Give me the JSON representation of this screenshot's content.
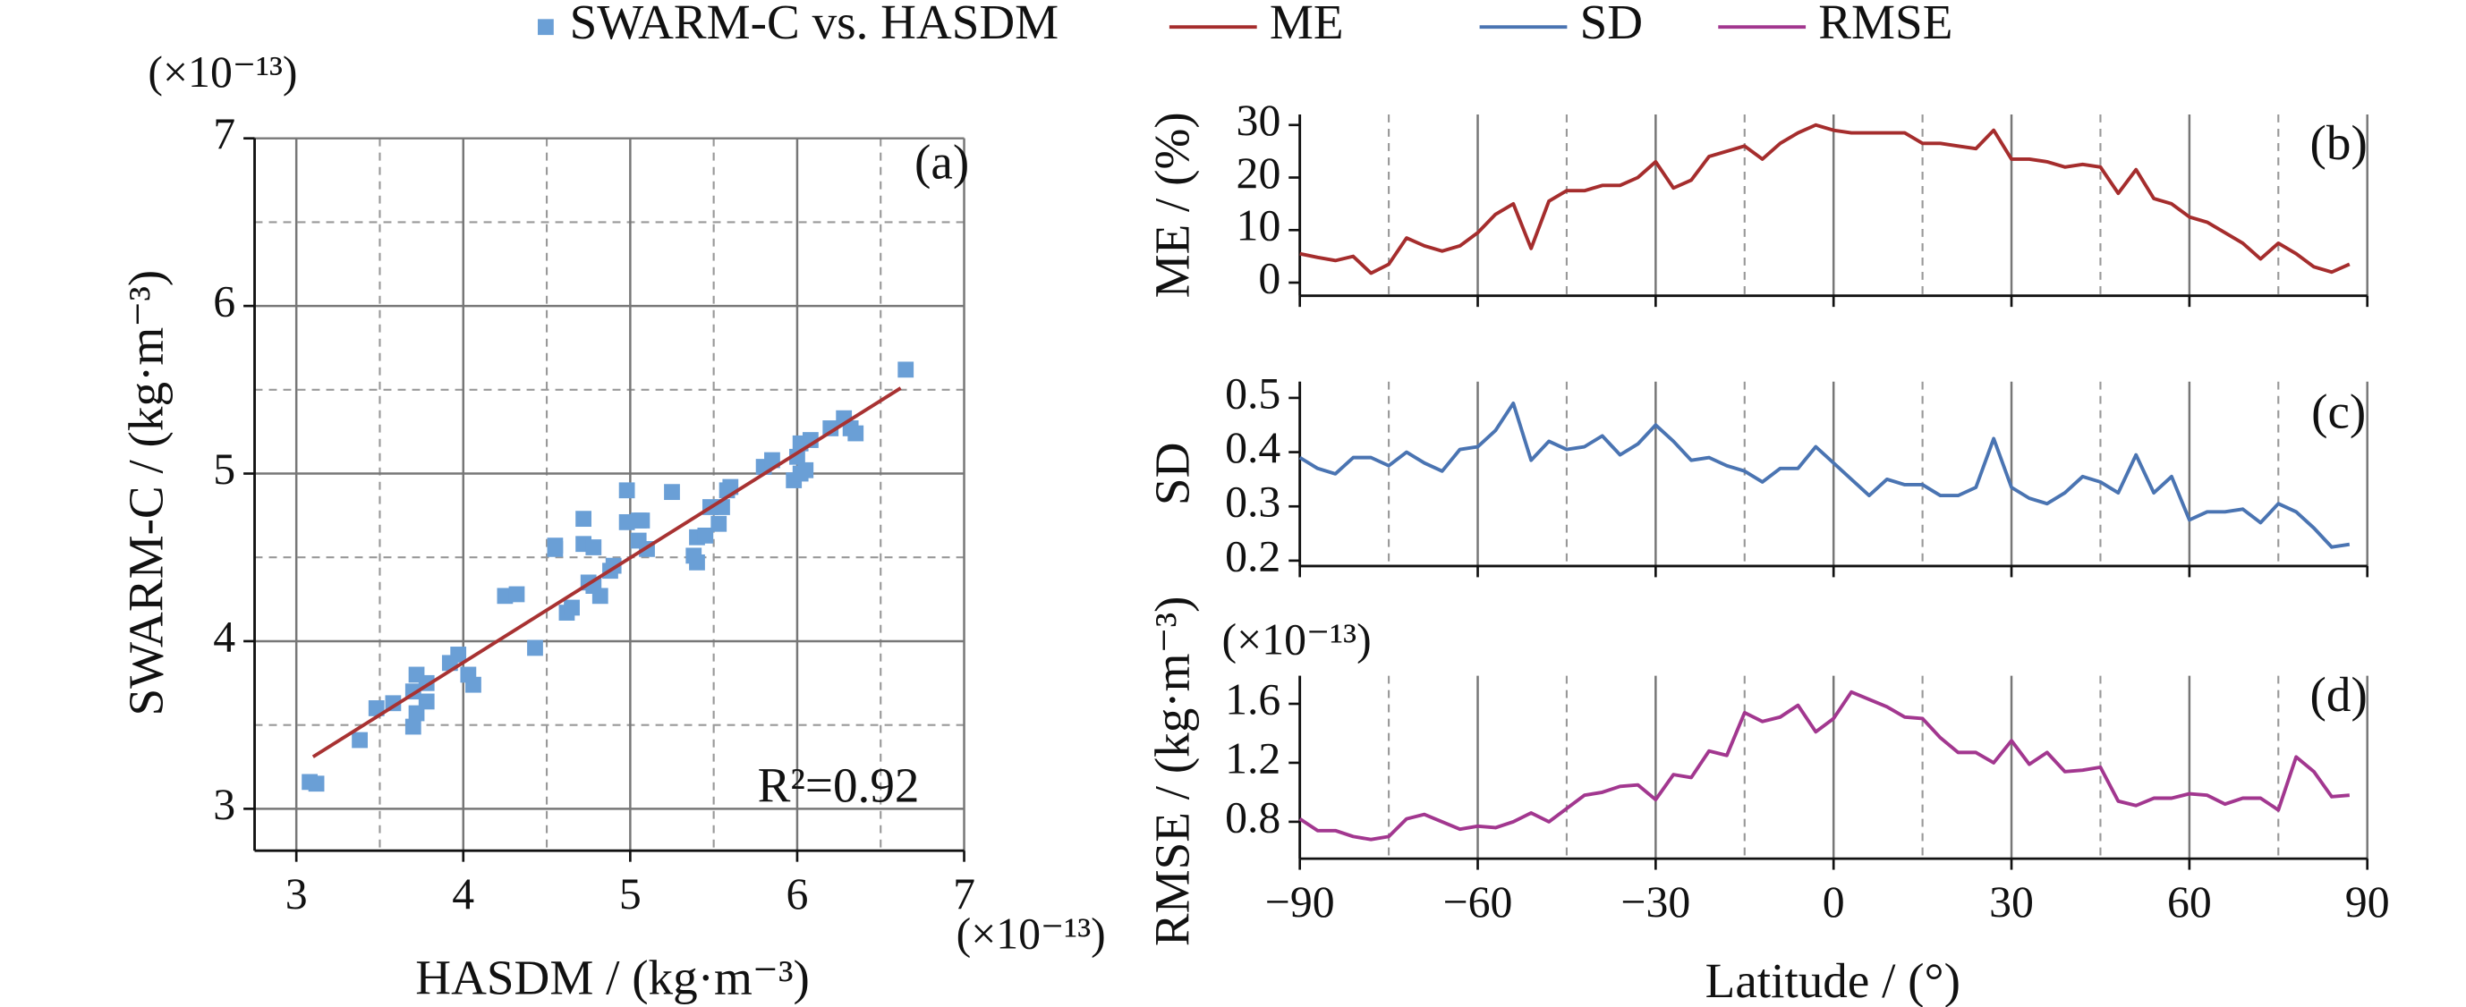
{
  "chart_data": [
    {
      "type": "scatter",
      "panel_label": "(a)",
      "x_label": "HASDM / (kg·m⁻³)",
      "y_label": "SWARM-C / (kg·m⁻³)",
      "x_unit": "(×10⁻¹³)",
      "y_unit": "(×10⁻¹³)",
      "annotation": "R²=0.92",
      "xlim": [
        2.75,
        7
      ],
      "ylim": [
        2.75,
        7
      ],
      "xticks": [
        3,
        4,
        5,
        6,
        7
      ],
      "yticks": [
        3,
        4,
        5,
        6,
        7
      ],
      "xgrid_minor": [
        3.5,
        4.5,
        5.5,
        6.5
      ],
      "ygrid_minor": [
        3.5,
        4.5,
        5.5,
        6.5
      ],
      "grid": true,
      "show_xtick_labels": true,
      "series": [
        {
          "name": "SWARM-C vs. HASDM",
          "color": "#6a9fd6",
          "x": [
            3.08,
            3.12,
            3.38,
            3.48,
            3.58,
            3.7,
            3.72,
            3.72,
            3.7,
            3.78,
            3.78,
            3.92,
            3.97,
            4.03,
            4.06,
            4.25,
            4.32,
            4.43,
            4.55,
            4.55,
            4.62,
            4.65,
            4.72,
            4.72,
            4.75,
            4.78,
            4.78,
            4.82,
            4.88,
            4.9,
            4.98,
            4.98,
            5.05,
            5.05,
            5.07,
            5.1,
            5.25,
            5.38,
            5.4,
            5.4,
            5.45,
            5.48,
            5.53,
            5.55,
            5.58,
            5.6,
            5.8,
            5.85,
            5.98,
            6.0,
            6.02,
            6.02,
            6.05,
            6.08,
            6.2,
            6.28,
            6.32,
            6.35,
            6.65
          ],
          "y": [
            3.16,
            3.15,
            3.41,
            3.6,
            3.63,
            3.7,
            3.8,
            3.57,
            3.49,
            3.75,
            3.64,
            3.87,
            3.92,
            3.8,
            3.74,
            4.27,
            4.28,
            3.96,
            4.55,
            4.57,
            4.17,
            4.2,
            4.58,
            4.73,
            4.35,
            4.56,
            4.33,
            4.27,
            4.42,
            4.45,
            4.9,
            4.71,
            4.72,
            4.6,
            4.72,
            4.55,
            4.89,
            4.51,
            4.62,
            4.47,
            4.63,
            4.8,
            4.7,
            4.8,
            4.9,
            4.92,
            5.04,
            5.08,
            4.96,
            5.1,
            5.0,
            5.18,
            5.02,
            5.2,
            5.27,
            5.33,
            5.27,
            5.24,
            5.62
          ]
        }
      ],
      "fit_line": {
        "color": "#a83232",
        "x": [
          3.1,
          6.62
        ],
        "y": [
          3.31,
          5.51
        ]
      }
    },
    {
      "type": "line",
      "panel_label": "(b)",
      "y_label": "ME / (%)",
      "x": [
        -90,
        -87,
        -84,
        -81,
        -78,
        -75,
        -72,
        -69,
        -66,
        -63,
        -60,
        -57,
        -54,
        -51,
        -48,
        -45,
        -42,
        -39,
        -36,
        -33,
        -30,
        -27,
        -24,
        -21,
        -18,
        -15,
        -12,
        -9,
        -6,
        -3,
        0,
        3,
        6,
        9,
        12,
        15,
        18,
        21,
        24,
        27,
        30,
        33,
        36,
        39,
        42,
        45,
        48,
        51,
        54,
        57,
        60,
        63,
        66,
        69,
        72,
        75,
        78,
        81,
        84,
        87
      ],
      "xlim": [
        -90,
        90
      ],
      "xticks": [
        -90,
        -60,
        -30,
        0,
        30,
        60,
        90
      ],
      "xgrid_minor": [
        -75,
        -45,
        -15,
        15,
        45,
        75
      ],
      "show_xtick_labels": false,
      "ylim": [
        -2.5,
        32
      ],
      "yticks": [
        0,
        10,
        20,
        30
      ],
      "series": [
        {
          "name": "ME",
          "color": "#a52d2d",
          "values": [
            5.5,
            4.8,
            4.2,
            5,
            1.8,
            3.5,
            8.5,
            7,
            6,
            7,
            9.5,
            13,
            15,
            6.5,
            15.5,
            17.5,
            17.5,
            18.5,
            18.5,
            20,
            23,
            18,
            19.5,
            24,
            25,
            26,
            23.5,
            26.5,
            28.5,
            30,
            29,
            28.5,
            28.5,
            28.5,
            28.5,
            26.5,
            26.5,
            26,
            25.5,
            29,
            23.5,
            23.5,
            23,
            22,
            22.5,
            22,
            17,
            21.5,
            16,
            15,
            12.5,
            11.5,
            9.5,
            7.5,
            4.5,
            7.5,
            5.5,
            3,
            2,
            3.5
          ]
        }
      ]
    },
    {
      "type": "line",
      "panel_label": "(c)",
      "y_label": "SD",
      "x": [
        -90,
        -87,
        -84,
        -81,
        -78,
        -75,
        -72,
        -69,
        -66,
        -63,
        -60,
        -57,
        -54,
        -51,
        -48,
        -45,
        -42,
        -39,
        -36,
        -33,
        -30,
        -27,
        -24,
        -21,
        -18,
        -15,
        -12,
        -9,
        -6,
        -3,
        0,
        3,
        6,
        9,
        12,
        15,
        18,
        21,
        24,
        27,
        30,
        33,
        36,
        39,
        42,
        45,
        48,
        51,
        54,
        57,
        60,
        63,
        66,
        69,
        72,
        75,
        78,
        81,
        84,
        87
      ],
      "xlim": [
        -90,
        90
      ],
      "xticks": [
        -90,
        -60,
        -30,
        0,
        30,
        60,
        90
      ],
      "xgrid_minor": [
        -75,
        -45,
        -15,
        15,
        45,
        75
      ],
      "show_xtick_labels": false,
      "ylim": [
        0.19,
        0.53
      ],
      "yticks": [
        0.2,
        0.3,
        0.4,
        0.5
      ],
      "series": [
        {
          "name": "SD",
          "color": "#4a74b2",
          "values": [
            0.39,
            0.37,
            0.36,
            0.39,
            0.39,
            0.375,
            0.4,
            0.38,
            0.365,
            0.405,
            0.41,
            0.44,
            0.49,
            0.385,
            0.42,
            0.405,
            0.41,
            0.43,
            0.395,
            0.415,
            0.45,
            0.42,
            0.385,
            0.39,
            0.375,
            0.365,
            0.345,
            0.37,
            0.37,
            0.41,
            0.38,
            0.35,
            0.32,
            0.35,
            0.34,
            0.34,
            0.32,
            0.32,
            0.335,
            0.425,
            0.335,
            0.315,
            0.305,
            0.325,
            0.355,
            0.345,
            0.325,
            0.395,
            0.325,
            0.355,
            0.275,
            0.29,
            0.29,
            0.295,
            0.27,
            0.305,
            0.29,
            0.26,
            0.225,
            0.23
          ]
        }
      ]
    },
    {
      "type": "line",
      "panel_label": "(d)",
      "y_label": "RMSE / (kg·m⁻³)",
      "y_unit": "(×10⁻¹³)",
      "x_label": "Latitude / (°)",
      "x": [
        -90,
        -87,
        -84,
        -81,
        -78,
        -75,
        -72,
        -69,
        -66,
        -63,
        -60,
        -57,
        -54,
        -51,
        -48,
        -45,
        -42,
        -39,
        -36,
        -33,
        -30,
        -27,
        -24,
        -21,
        -18,
        -15,
        -12,
        -9,
        -6,
        -3,
        0,
        3,
        6,
        9,
        12,
        15,
        18,
        21,
        24,
        27,
        30,
        33,
        36,
        39,
        42,
        45,
        48,
        51,
        54,
        57,
        60,
        63,
        66,
        69,
        72,
        75,
        78,
        81,
        84,
        87
      ],
      "xlim": [
        -90,
        90
      ],
      "xgrid_minor": [
        -75,
        -45,
        -15,
        15,
        45,
        75
      ],
      "show_xtick_labels": true,
      "xticks": [
        {
          "value": -90,
          "label": "−90"
        },
        {
          "value": -60,
          "label": "−60"
        },
        {
          "value": -30,
          "label": "−30"
        },
        0,
        30,
        60,
        90
      ],
      "ylim": [
        0.55,
        1.79
      ],
      "yticks": [
        0.8,
        1.2,
        1.6
      ],
      "series": [
        {
          "name": "RMSE",
          "color": "#a2378f",
          "values": [
            0.82,
            0.74,
            0.74,
            0.7,
            0.68,
            0.7,
            0.82,
            0.85,
            0.8,
            0.75,
            0.77,
            0.76,
            0.8,
            0.86,
            0.8,
            0.89,
            0.98,
            1.0,
            1.04,
            1.05,
            0.95,
            1.12,
            1.1,
            1.28,
            1.25,
            1.54,
            1.48,
            1.51,
            1.59,
            1.41,
            1.5,
            1.68,
            1.63,
            1.58,
            1.51,
            1.5,
            1.37,
            1.27,
            1.27,
            1.2,
            1.35,
            1.19,
            1.27,
            1.14,
            1.15,
            1.17,
            0.94,
            0.91,
            0.96,
            0.96,
            0.99,
            0.98,
            0.92,
            0.96,
            0.96,
            0.88,
            1.24,
            1.14,
            0.97,
            0.98
          ]
        }
      ]
    }
  ]
}
